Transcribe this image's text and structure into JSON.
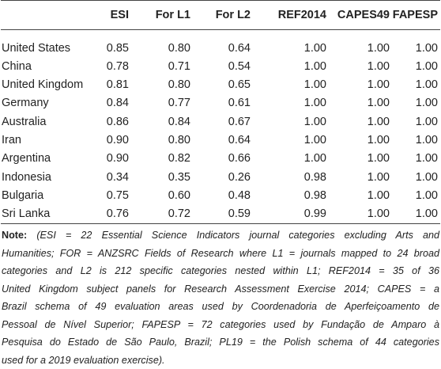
{
  "table": {
    "columns": [
      "ESI",
      "For L1",
      "For L2",
      "REF2014",
      "CAPES49",
      "FAPESP"
    ],
    "rows": [
      {
        "name": "United States",
        "values": [
          "0.85",
          "0.80",
          "0.64",
          "1.00",
          "1.00",
          "1.00"
        ]
      },
      {
        "name": "China",
        "values": [
          "0.78",
          "0.71",
          "0.54",
          "1.00",
          "1.00",
          "1.00"
        ]
      },
      {
        "name": "United Kingdom",
        "values": [
          "0.81",
          "0.80",
          "0.65",
          "1.00",
          "1.00",
          "1.00"
        ]
      },
      {
        "name": "Germany",
        "values": [
          "0.84",
          "0.77",
          "0.61",
          "1.00",
          "1.00",
          "1.00"
        ]
      },
      {
        "name": "Australia",
        "values": [
          "0.86",
          "0.84",
          "0.67",
          "1.00",
          "1.00",
          "1.00"
        ]
      },
      {
        "name": "Iran",
        "values": [
          "0.90",
          "0.80",
          "0.64",
          "1.00",
          "1.00",
          "1.00"
        ]
      },
      {
        "name": "Argentina",
        "values": [
          "0.90",
          "0.82",
          "0.66",
          "1.00",
          "1.00",
          "1.00"
        ]
      },
      {
        "name": "Indonesia",
        "values": [
          "0.34",
          "0.35",
          "0.26",
          "0.98",
          "1.00",
          "1.00"
        ]
      },
      {
        "name": "Bulgaria",
        "values": [
          "0.75",
          "0.60",
          "0.48",
          "0.98",
          "1.00",
          "1.00"
        ]
      },
      {
        "name": "Sri Lanka",
        "values": [
          "0.76",
          "0.72",
          "0.59",
          "0.99",
          "1.00",
          "1.00"
        ]
      }
    ]
  },
  "note": {
    "label": "Note:",
    "lines": [
      "(ESI = 22 Essential Science Indicators journal categories excluding Arts and",
      "Humanities; FOR = ANZSRC Fields of Research where L1 = journals mapped to 24 broad",
      "categories and L2 is 212 specific categories nested within L1; REF2014 = 35 of 36",
      "United Kingdom subject panels for Research Assessment Exercise 2014; CAPES = a",
      "Brazil schema of 49 evaluation areas used by Coordenadoria de Aperfeiçoamento de",
      "Pessoal de Nível Superior; FAPESP = 72 categories used by Fundação de Amparo à",
      "Pesquisa do Estado de São Paulo, Brazil; PL19 = the Polish schema of 44 categories",
      "used for a 2019 evaluation exercise)."
    ]
  }
}
